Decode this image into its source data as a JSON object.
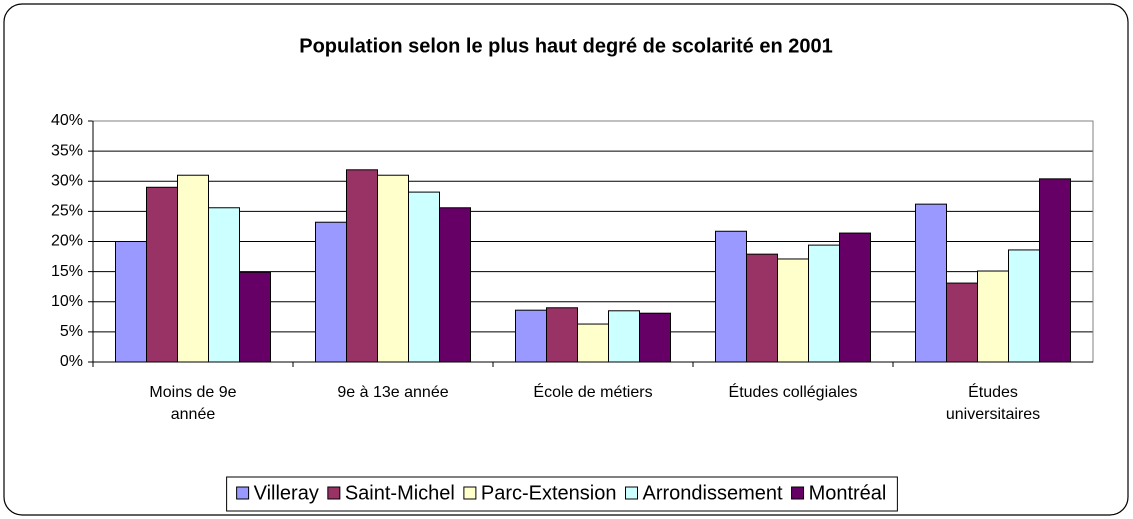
{
  "chart_data": {
    "type": "bar",
    "title": "Population selon le plus haut degré de scolarité en 2001",
    "categories": [
      "Moins de 9e\nannée",
      "9e à 13e année",
      "École de métiers",
      "Études collégiales",
      "Études\nuniversitaires"
    ],
    "series": [
      {
        "name": "Villeray",
        "color": "#9999ff",
        "values": [
          20,
          23.2,
          8.6,
          21.7,
          26.2
        ]
      },
      {
        "name": "Saint-Michel",
        "color": "#993366",
        "values": [
          29,
          31.9,
          9,
          17.9,
          13.1
        ]
      },
      {
        "name": "Parc-Extension",
        "color": "#ffffcc",
        "values": [
          31,
          31,
          6.3,
          17.1,
          15.1
        ]
      },
      {
        "name": "Arrondissement",
        "color": "#ccffff",
        "values": [
          25.6,
          28.2,
          8.5,
          19.4,
          18.6
        ]
      },
      {
        "name": "Montréal",
        "color": "#660066",
        "values": [
          14.9,
          25.6,
          8.1,
          21.4,
          30.4
        ]
      }
    ],
    "ylim": [
      0,
      40
    ],
    "yticks": [
      {
        "value": 0,
        "label": "0%"
      },
      {
        "value": 5,
        "label": "5%"
      },
      {
        "value": 10,
        "label": "10%"
      },
      {
        "value": 15,
        "label": "15%"
      },
      {
        "value": 20,
        "label": "20%"
      },
      {
        "value": 25,
        "label": "25%"
      },
      {
        "value": 30,
        "label": "30%"
      },
      {
        "value": 35,
        "label": "35%"
      },
      {
        "value": 40,
        "label": "40%"
      }
    ],
    "grid": true
  }
}
